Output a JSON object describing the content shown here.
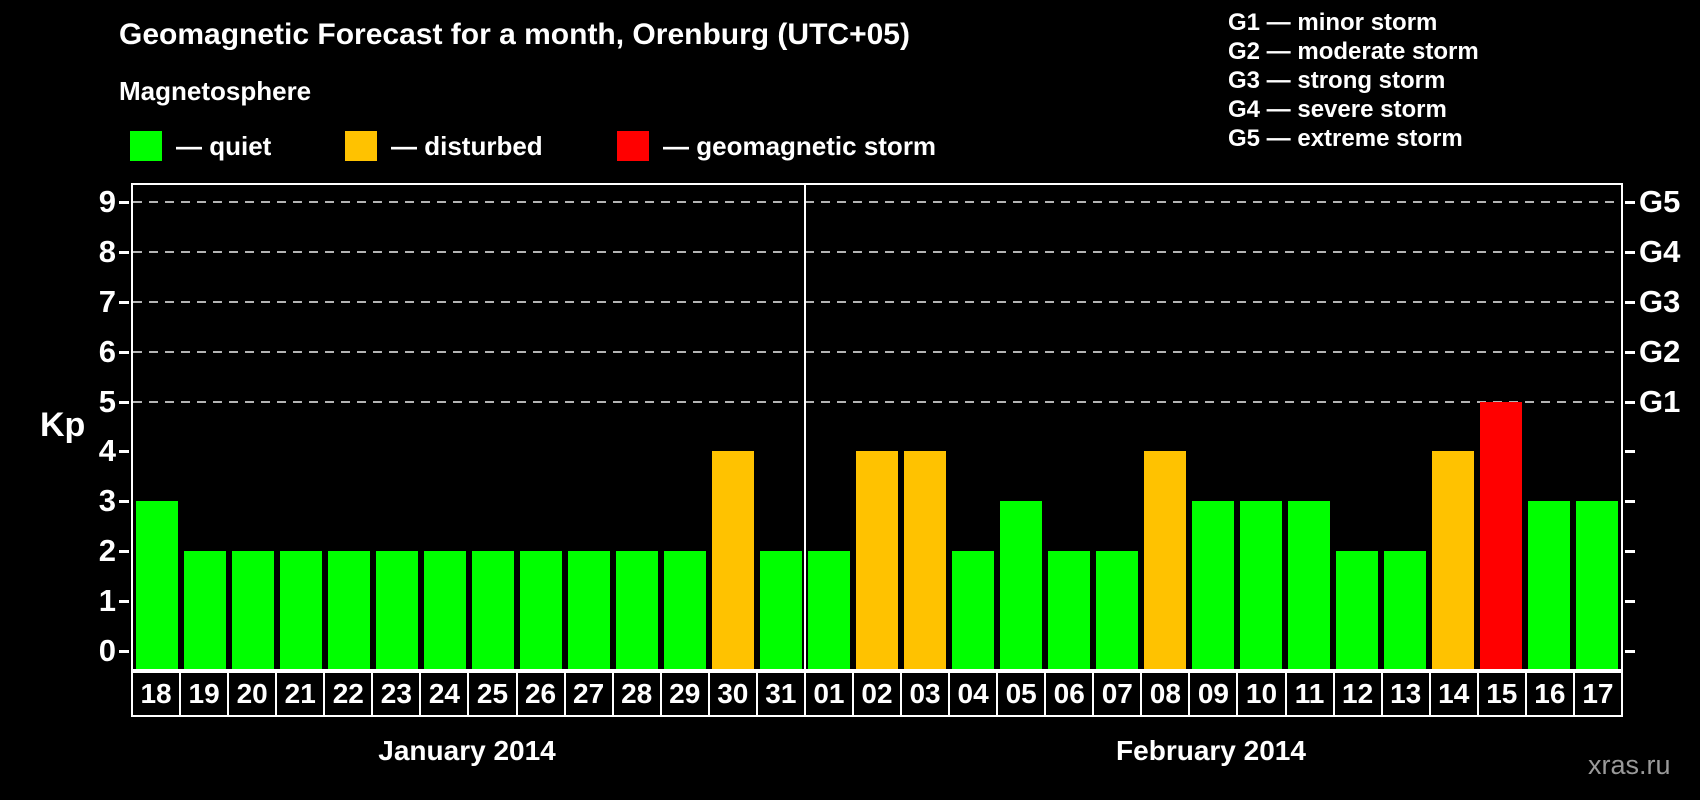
{
  "header": {
    "title": "Geomagnetic Forecast for a month, Orenburg (UTC+05)",
    "subtitle": "Magnetosphere",
    "legend": [
      {
        "status": "quiet",
        "label": "— quiet"
      },
      {
        "status": "disturbed",
        "label": "— disturbed"
      },
      {
        "status": "storm",
        "label": "— geomagnetic storm"
      }
    ],
    "g_scale_legend": [
      "G1 — minor storm",
      "G2 — moderate storm",
      "G3 — strong storm",
      "G4 — severe storm",
      "G5 — extreme storm"
    ]
  },
  "chart_data": {
    "type": "bar",
    "ylabel": "Kp",
    "ylim": [
      0,
      9
    ],
    "y_ticks": [
      0,
      1,
      2,
      3,
      4,
      5,
      6,
      7,
      8,
      9
    ],
    "gridlines_kp": [
      5,
      6,
      7,
      8,
      9
    ],
    "right_axis_labels": [
      {
        "label": "G1",
        "kp": 5
      },
      {
        "label": "G2",
        "kp": 6
      },
      {
        "label": "G3",
        "kp": 7
      },
      {
        "label": "G4",
        "kp": 8
      },
      {
        "label": "G5",
        "kp": 9
      }
    ],
    "categories": [
      "18",
      "19",
      "20",
      "21",
      "22",
      "23",
      "24",
      "25",
      "26",
      "27",
      "28",
      "29",
      "30",
      "31",
      "01",
      "02",
      "03",
      "04",
      "05",
      "06",
      "07",
      "08",
      "09",
      "10",
      "11",
      "12",
      "13",
      "14",
      "15",
      "16",
      "17"
    ],
    "values": [
      3,
      2,
      2,
      2,
      2,
      2,
      2,
      2,
      2,
      2,
      2,
      2,
      4,
      2,
      2,
      4,
      4,
      2,
      3,
      2,
      2,
      4,
      3,
      3,
      3,
      2,
      2,
      4,
      5,
      3,
      3
    ],
    "statuses": [
      "quiet",
      "quiet",
      "quiet",
      "quiet",
      "quiet",
      "quiet",
      "quiet",
      "quiet",
      "quiet",
      "quiet",
      "quiet",
      "quiet",
      "disturbed",
      "quiet",
      "quiet",
      "disturbed",
      "disturbed",
      "quiet",
      "quiet",
      "quiet",
      "quiet",
      "disturbed",
      "quiet",
      "quiet",
      "quiet",
      "quiet",
      "quiet",
      "disturbed",
      "storm",
      "quiet",
      "quiet"
    ],
    "status_colors": {
      "quiet": "#00ff00",
      "disturbed": "#ffc200",
      "storm": "#ff0000"
    },
    "months": [
      {
        "label": "January 2014",
        "days": 14
      },
      {
        "label": "February 2014",
        "days": 17
      }
    ]
  },
  "watermark": "xras.ru"
}
